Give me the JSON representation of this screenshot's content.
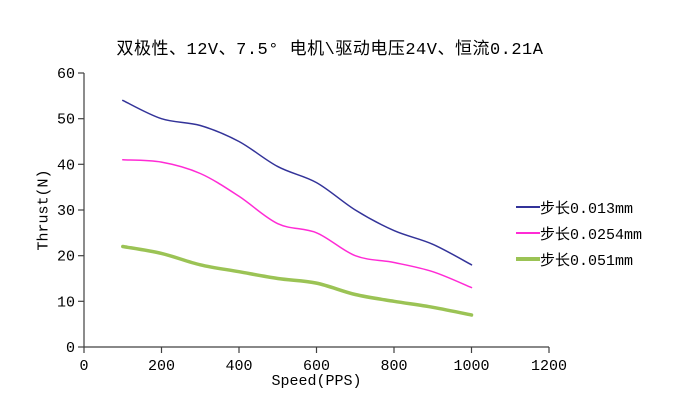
{
  "chart_data": {
    "type": "line",
    "title": "双极性、12V、7.5° 电机\\驱动电压24V、恒流0.21A",
    "xlabel": "Speed(PPS)",
    "ylabel": "Thrust(N)",
    "xlim": [
      0,
      1200
    ],
    "ylim": [
      0,
      60
    ],
    "xticks": [
      0,
      200,
      400,
      600,
      800,
      1000,
      1200
    ],
    "yticks": [
      0,
      10,
      20,
      30,
      40,
      50,
      60
    ],
    "grid": false,
    "legend_position": "right",
    "x": [
      100,
      200,
      300,
      400,
      500,
      600,
      700,
      800,
      900,
      1000
    ],
    "series": [
      {
        "name": "步长0.013mm",
        "color": "#333399",
        "line_width": 1.5,
        "values": [
          54,
          50,
          48.5,
          45,
          39.5,
          36,
          30,
          25.5,
          22.5,
          18
        ]
      },
      {
        "name": "步长0.0254mm",
        "color": "#ff2bd5",
        "line_width": 1.5,
        "values": [
          41,
          40.5,
          38,
          33,
          27,
          25,
          20,
          18.5,
          16.5,
          13
        ]
      },
      {
        "name": "步长0.051mm",
        "color": "#9bc355",
        "line_width": 3.5,
        "values": [
          22,
          20.5,
          18,
          16.5,
          15,
          14,
          11.5,
          10,
          8.7,
          7
        ]
      }
    ],
    "axis_color": "#404040"
  }
}
